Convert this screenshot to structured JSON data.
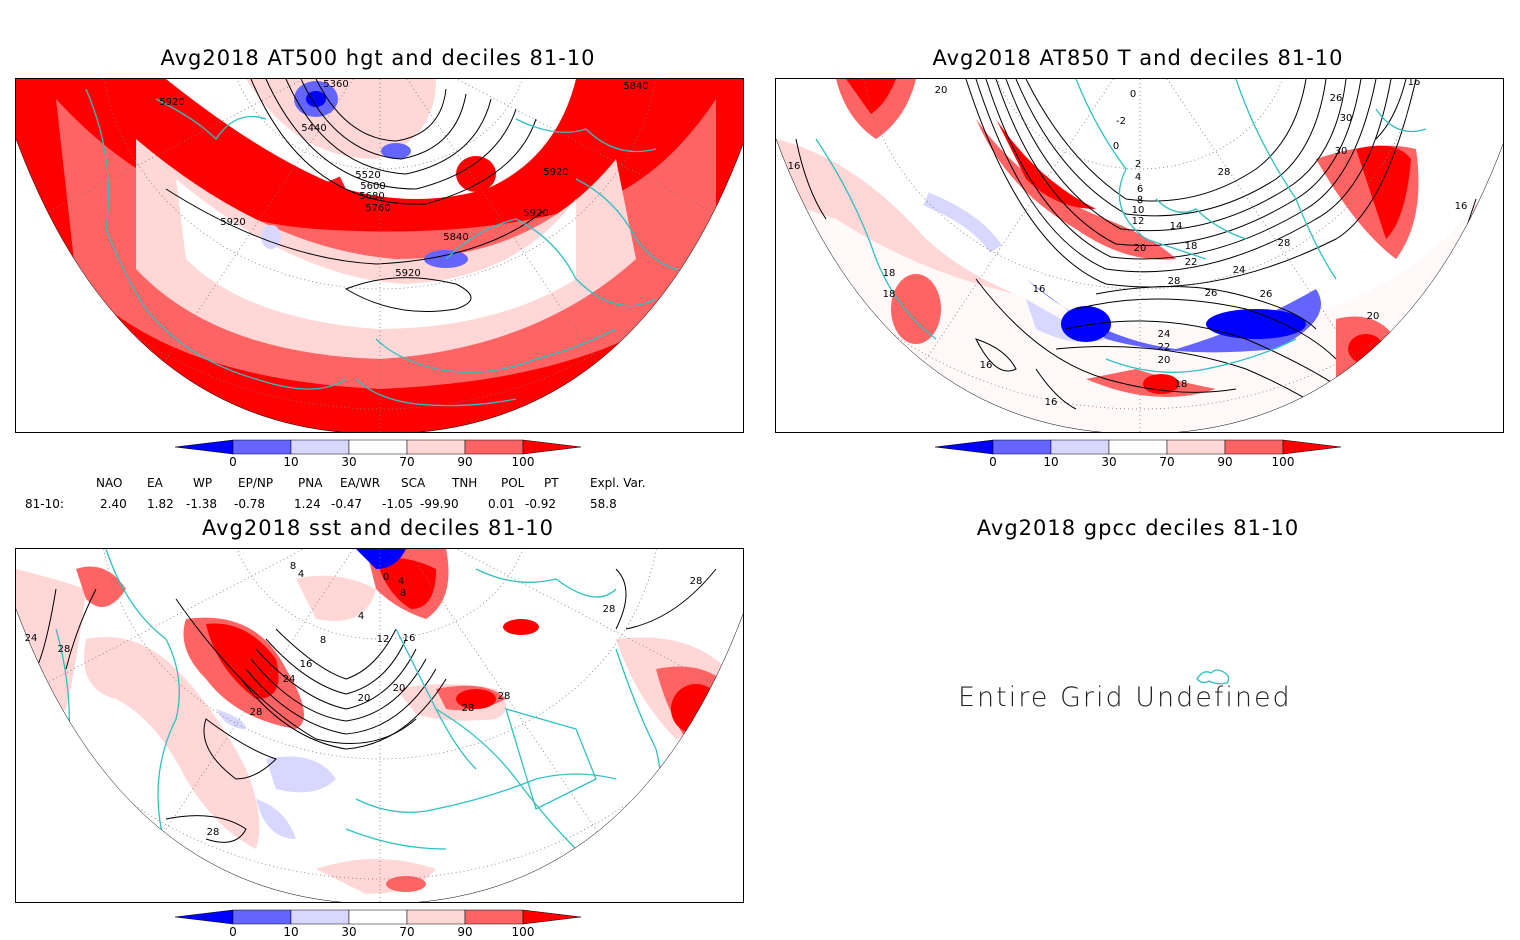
{
  "panels": {
    "p1": {
      "title": "Avg2018 AT500 hgt and deciles 81-10",
      "labels": [
        "5920",
        "5840",
        "5360",
        "5440",
        "5520",
        "5600",
        "5680",
        "5760",
        "5920",
        "5920",
        "5920",
        "5840",
        "5920"
      ]
    },
    "p2": {
      "title": "Avg2018 AT850 T and deciles 81-10",
      "labels": [
        "20",
        "0",
        "-2",
        "0",
        "2",
        "4",
        "6",
        "8",
        "10",
        "12",
        "14",
        "20",
        "18",
        "22",
        "24",
        "28",
        "26",
        "26",
        "24",
        "22",
        "20",
        "16",
        "16",
        "18",
        "18",
        "16",
        "28",
        "30",
        "30",
        "26",
        "16",
        "16",
        "18",
        "20",
        "28",
        "16"
      ]
    },
    "p3": {
      "title": "Avg2018 sst and deciles 81-10",
      "labels": [
        "8",
        "4",
        "0",
        "4",
        "8",
        "4",
        "8",
        "12",
        "16",
        "16",
        "20",
        "24",
        "20",
        "28",
        "28",
        "28",
        "28",
        "24",
        "28",
        "28",
        "28"
      ]
    },
    "p4": {
      "title": "Avg2018 gpcc deciles 81-10",
      "message": "Entire Grid Undefined"
    }
  },
  "colorbar": {
    "ticks": [
      "0",
      "10",
      "30",
      "70",
      "90",
      "100"
    ],
    "colors": [
      "#0000ff",
      "#6464ff",
      "#d7d7ff",
      "#ffffff",
      "#ffd7d7",
      "#ff6464",
      "#ff0000"
    ]
  },
  "indices": {
    "headers": [
      "NAO",
      "EA",
      "WP",
      "EP/NP",
      "PNA",
      "EA/WR",
      "SCA",
      "TNH",
      "POL",
      "PT",
      "Expl. Var."
    ],
    "row_label": "81-10:",
    "values": [
      "2.40",
      "1.82",
      "-1.38",
      "-0.78",
      "1.24",
      "-0.47",
      "-1.05",
      "-99.90",
      "0.01",
      "-0.92",
      "58.8"
    ]
  }
}
